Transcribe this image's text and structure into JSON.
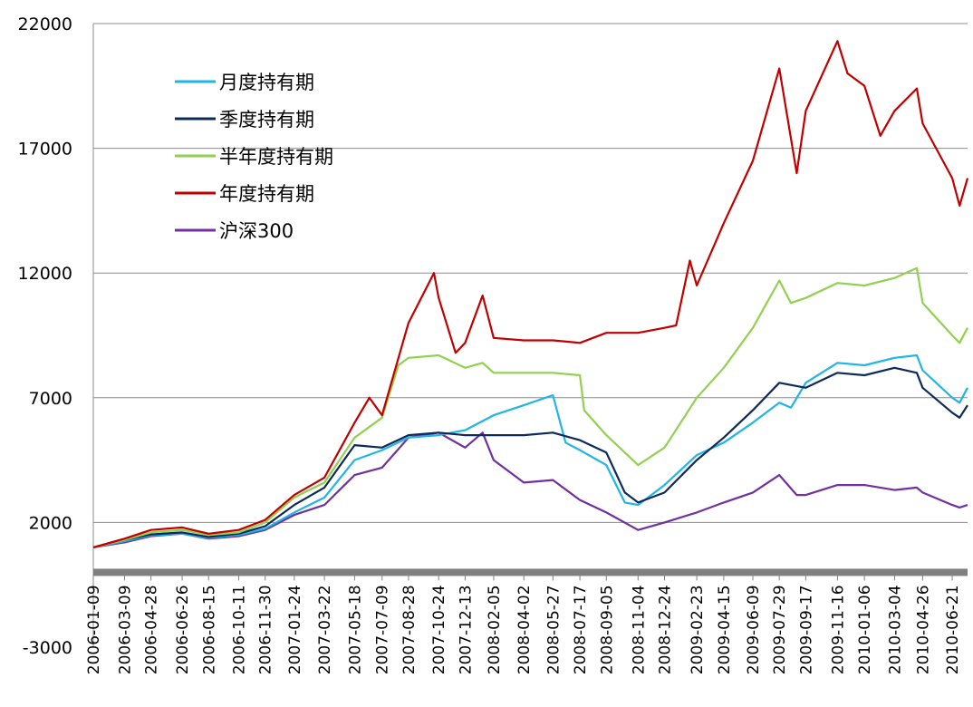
{
  "chart_data": {
    "type": "line",
    "ylim": [
      -3000,
      22000
    ],
    "yticks": [
      -3000,
      2000,
      7000,
      12000,
      17000,
      22000
    ],
    "grid": true,
    "legend_placement": "top-left",
    "x_tick_labels": [
      "2006-01-09",
      "2006-03-09",
      "2006-04-28",
      "2006-06-26",
      "2006-08-15",
      "2006-10-11",
      "2006-11-30",
      "2007-01-24",
      "2007-03-22",
      "2007-05-18",
      "2007-07-09",
      "2007-08-28",
      "2007-10-24",
      "2007-12-13",
      "2008-02-05",
      "2008-04-02",
      "2008-05-27",
      "2008-07-17",
      "2008-09-05",
      "2008-11-04",
      "2008-12-24",
      "2009-02-23",
      "2009-04-15",
      "2009-06-09",
      "2009-07-29",
      "2009-09-17",
      "2009-11-16",
      "2010-01-06",
      "2010-03-04",
      "2010-04-26",
      "2010-06-21"
    ],
    "x_end": "2010-07-20",
    "series": [
      {
        "name": "月度持有期",
        "color": "#1fb5e6",
        "points": [
          [
            "2006-01-09",
            1000
          ],
          [
            "2006-03-09",
            1250
          ],
          [
            "2006-04-28",
            1480
          ],
          [
            "2006-06-26",
            1550
          ],
          [
            "2006-08-15",
            1380
          ],
          [
            "2006-10-11",
            1500
          ],
          [
            "2006-11-30",
            1750
          ],
          [
            "2007-01-24",
            2400
          ],
          [
            "2007-03-22",
            3000
          ],
          [
            "2007-05-18",
            4500
          ],
          [
            "2007-07-09",
            4900
          ],
          [
            "2007-08-28",
            5400
          ],
          [
            "2007-10-24",
            5500
          ],
          [
            "2007-12-13",
            5700
          ],
          [
            "2008-02-05",
            6300
          ],
          [
            "2008-04-02",
            6700
          ],
          [
            "2008-05-27",
            7100
          ],
          [
            "2008-06-20",
            5200
          ],
          [
            "2008-07-17",
            4900
          ],
          [
            "2008-09-05",
            4300
          ],
          [
            "2008-10-10",
            2800
          ],
          [
            "2008-11-04",
            2700
          ],
          [
            "2008-12-24",
            3500
          ],
          [
            "2009-02-23",
            4700
          ],
          [
            "2009-04-15",
            5200
          ],
          [
            "2009-06-09",
            6000
          ],
          [
            "2009-07-29",
            6800
          ],
          [
            "2009-08-20",
            6600
          ],
          [
            "2009-09-17",
            7600
          ],
          [
            "2009-11-16",
            8400
          ],
          [
            "2010-01-06",
            8300
          ],
          [
            "2010-03-04",
            8600
          ],
          [
            "2010-04-15",
            8700
          ],
          [
            "2010-04-26",
            8100
          ],
          [
            "2010-06-21",
            7000
          ],
          [
            "2010-07-05",
            6800
          ],
          [
            "2010-07-20",
            7400
          ]
        ]
      },
      {
        "name": "季度持有期",
        "color": "#0d2a5c",
        "points": [
          [
            "2006-01-09",
            1000
          ],
          [
            "2006-03-09",
            1300
          ],
          [
            "2006-04-28",
            1520
          ],
          [
            "2006-06-26",
            1600
          ],
          [
            "2006-08-15",
            1420
          ],
          [
            "2006-10-11",
            1550
          ],
          [
            "2006-11-30",
            1850
          ],
          [
            "2007-01-24",
            2700
          ],
          [
            "2007-03-22",
            3400
          ],
          [
            "2007-05-18",
            5100
          ],
          [
            "2007-07-09",
            5000
          ],
          [
            "2007-08-28",
            5500
          ],
          [
            "2007-10-24",
            5600
          ],
          [
            "2007-12-13",
            5500
          ],
          [
            "2008-02-05",
            5500
          ],
          [
            "2008-04-02",
            5500
          ],
          [
            "2008-05-27",
            5600
          ],
          [
            "2008-07-17",
            5300
          ],
          [
            "2008-09-05",
            4800
          ],
          [
            "2008-10-10",
            3200
          ],
          [
            "2008-11-04",
            2800
          ],
          [
            "2008-12-24",
            3200
          ],
          [
            "2009-02-23",
            4500
          ],
          [
            "2009-04-15",
            5400
          ],
          [
            "2009-06-09",
            6500
          ],
          [
            "2009-07-29",
            7600
          ],
          [
            "2009-09-17",
            7400
          ],
          [
            "2009-11-16",
            8000
          ],
          [
            "2010-01-06",
            7900
          ],
          [
            "2010-03-04",
            8200
          ],
          [
            "2010-04-15",
            8000
          ],
          [
            "2010-04-26",
            7400
          ],
          [
            "2010-06-21",
            6400
          ],
          [
            "2010-07-05",
            6200
          ],
          [
            "2010-07-20",
            6700
          ]
        ]
      },
      {
        "name": "半年度持有期",
        "color": "#92d050",
        "points": [
          [
            "2006-01-09",
            1000
          ],
          [
            "2006-03-09",
            1300
          ],
          [
            "2006-04-28",
            1600
          ],
          [
            "2006-06-26",
            1700
          ],
          [
            "2006-08-15",
            1500
          ],
          [
            "2006-10-11",
            1600
          ],
          [
            "2006-11-30",
            2000
          ],
          [
            "2007-01-24",
            3000
          ],
          [
            "2007-03-22",
            3600
          ],
          [
            "2007-05-18",
            5400
          ],
          [
            "2007-07-09",
            6200
          ],
          [
            "2007-08-09",
            8300
          ],
          [
            "2007-08-28",
            8600
          ],
          [
            "2007-10-24",
            8700
          ],
          [
            "2007-12-13",
            8200
          ],
          [
            "2008-01-15",
            8400
          ],
          [
            "2008-02-05",
            8000
          ],
          [
            "2008-04-02",
            8000
          ],
          [
            "2008-05-27",
            8000
          ],
          [
            "2008-07-17",
            7900
          ],
          [
            "2008-07-25",
            6500
          ],
          [
            "2008-09-05",
            5500
          ],
          [
            "2008-10-10",
            4800
          ],
          [
            "2008-11-04",
            4300
          ],
          [
            "2008-12-24",
            5000
          ],
          [
            "2009-02-23",
            7000
          ],
          [
            "2009-04-15",
            8200
          ],
          [
            "2009-06-09",
            9800
          ],
          [
            "2009-07-29",
            11700
          ],
          [
            "2009-08-20",
            10800
          ],
          [
            "2009-09-17",
            11000
          ],
          [
            "2009-11-16",
            11600
          ],
          [
            "2010-01-06",
            11500
          ],
          [
            "2010-03-04",
            11800
          ],
          [
            "2010-04-15",
            12200
          ],
          [
            "2010-04-26",
            10800
          ],
          [
            "2010-06-21",
            9500
          ],
          [
            "2010-07-05",
            9200
          ],
          [
            "2010-07-20",
            9800
          ]
        ]
      },
      {
        "name": "年度持有期",
        "color": "#c00000",
        "points": [
          [
            "2006-01-09",
            1000
          ],
          [
            "2006-03-09",
            1350
          ],
          [
            "2006-04-28",
            1700
          ],
          [
            "2006-06-26",
            1800
          ],
          [
            "2006-08-15",
            1550
          ],
          [
            "2006-10-11",
            1700
          ],
          [
            "2006-11-30",
            2100
          ],
          [
            "2007-01-24",
            3100
          ],
          [
            "2007-03-22",
            3800
          ],
          [
            "2007-05-18",
            6000
          ],
          [
            "2007-06-15",
            7000
          ],
          [
            "2007-07-09",
            6300
          ],
          [
            "2007-08-28",
            10000
          ],
          [
            "2007-10-15",
            12000
          ],
          [
            "2007-10-24",
            11000
          ],
          [
            "2007-11-25",
            8800
          ],
          [
            "2007-12-13",
            9200
          ],
          [
            "2008-01-15",
            11100
          ],
          [
            "2008-02-05",
            9400
          ],
          [
            "2008-04-02",
            9300
          ],
          [
            "2008-05-27",
            9300
          ],
          [
            "2008-07-17",
            9200
          ],
          [
            "2008-09-05",
            9600
          ],
          [
            "2008-11-04",
            9600
          ],
          [
            "2008-12-24",
            9800
          ],
          [
            "2009-01-15",
            9900
          ],
          [
            "2009-02-10",
            12500
          ],
          [
            "2009-02-23",
            11500
          ],
          [
            "2009-04-15",
            14000
          ],
          [
            "2009-06-09",
            16500
          ],
          [
            "2009-07-29",
            20200
          ],
          [
            "2009-08-31",
            16000
          ],
          [
            "2009-09-17",
            18500
          ],
          [
            "2009-11-16",
            21300
          ],
          [
            "2009-12-05",
            20000
          ],
          [
            "2010-01-06",
            19500
          ],
          [
            "2010-02-05",
            17500
          ],
          [
            "2010-03-04",
            18500
          ],
          [
            "2010-04-15",
            19400
          ],
          [
            "2010-04-26",
            18000
          ],
          [
            "2010-06-21",
            15800
          ],
          [
            "2010-07-05",
            14700
          ],
          [
            "2010-07-20",
            15800
          ]
        ]
      },
      {
        "name": "沪深300",
        "color": "#7030a0",
        "points": [
          [
            "2006-01-09",
            1000
          ],
          [
            "2006-03-09",
            1200
          ],
          [
            "2006-04-28",
            1450
          ],
          [
            "2006-06-26",
            1550
          ],
          [
            "2006-08-15",
            1350
          ],
          [
            "2006-10-11",
            1450
          ],
          [
            "2006-11-30",
            1700
          ],
          [
            "2007-01-24",
            2300
          ],
          [
            "2007-03-22",
            2700
          ],
          [
            "2007-05-18",
            3900
          ],
          [
            "2007-07-09",
            4200
          ],
          [
            "2007-08-28",
            5400
          ],
          [
            "2007-10-24",
            5600
          ],
          [
            "2007-12-13",
            5000
          ],
          [
            "2008-01-15",
            5600
          ],
          [
            "2008-02-05",
            4500
          ],
          [
            "2008-04-02",
            3600
          ],
          [
            "2008-05-27",
            3700
          ],
          [
            "2008-07-17",
            2900
          ],
          [
            "2008-09-05",
            2400
          ],
          [
            "2008-11-04",
            1700
          ],
          [
            "2008-12-24",
            2000
          ],
          [
            "2009-02-23",
            2400
          ],
          [
            "2009-04-15",
            2800
          ],
          [
            "2009-06-09",
            3200
          ],
          [
            "2009-07-29",
            3900
          ],
          [
            "2009-08-31",
            3100
          ],
          [
            "2009-09-17",
            3100
          ],
          [
            "2009-11-16",
            3500
          ],
          [
            "2010-01-06",
            3500
          ],
          [
            "2010-03-04",
            3300
          ],
          [
            "2010-04-15",
            3400
          ],
          [
            "2010-04-26",
            3200
          ],
          [
            "2010-06-21",
            2700
          ],
          [
            "2010-07-05",
            2600
          ],
          [
            "2010-07-20",
            2700
          ]
        ]
      }
    ]
  }
}
